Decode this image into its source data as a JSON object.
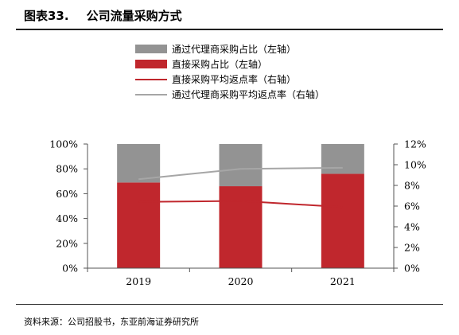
{
  "header": {
    "figure_number": "图表33.",
    "title": "公司流量采购方式"
  },
  "footer": {
    "source": "资料来源：公司招股书，东亚前海证券研究所"
  },
  "colors": {
    "gray_bar": "#939393",
    "red_bar": "#c0272d",
    "red_line": "#c0272d",
    "gray_line": "#a6a6a6"
  },
  "chart_data": {
    "type": "bar",
    "categories": [
      "2019",
      "2020",
      "2021"
    ],
    "series": [
      {
        "name": "通过代理商采购占比（左轴）",
        "type": "bar",
        "axis": "left",
        "values": [
          31,
          34,
          24
        ]
      },
      {
        "name": "直接采购占比（左轴）",
        "type": "bar",
        "axis": "left",
        "values": [
          69,
          66,
          76
        ]
      },
      {
        "name": "直接采购平均返点率（右轴）",
        "type": "line",
        "axis": "right",
        "values": [
          6.4,
          6.5,
          5.9
        ]
      },
      {
        "name": "通过代理商采购平均返点率（右轴）",
        "type": "line",
        "axis": "right",
        "values": [
          8.6,
          9.6,
          9.7
        ]
      }
    ],
    "left_axis": {
      "ylim": [
        0,
        100
      ],
      "ticks": [
        0,
        20,
        40,
        60,
        80,
        100
      ],
      "tick_labels": [
        "0%",
        "20%",
        "40%",
        "60%",
        "80%",
        "100%"
      ]
    },
    "right_axis": {
      "ylim": [
        0,
        12
      ],
      "ticks": [
        0,
        2,
        4,
        6,
        8,
        10,
        12
      ],
      "tick_labels": [
        "0%",
        "2%",
        "4%",
        "6%",
        "8%",
        "10%",
        "12%"
      ]
    },
    "stacked": true,
    "grid": false,
    "legend_position": "top"
  }
}
